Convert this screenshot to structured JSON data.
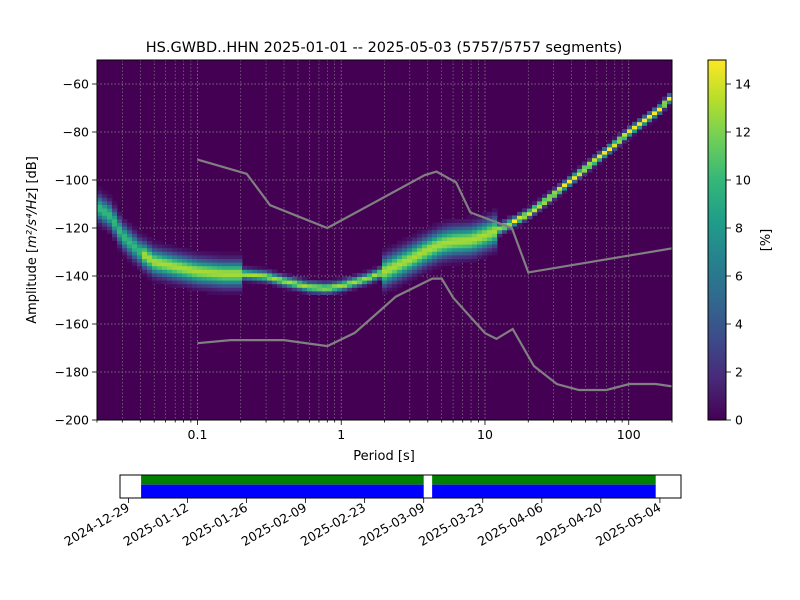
{
  "chart_data": [
    {
      "type": "heatmap",
      "title": "HS.GWBD..HHN   2025-01-01 -- 2025-05-03  (5757/5757 segments)",
      "xlabel": "Period [s]",
      "ylabel_prefix": "Amplitude [",
      "ylabel_unit_html": "m²/s⁴/Hz",
      "ylabel_suffix": "] [dB]",
      "xscale": "log",
      "xlim": [
        0.02,
        200
      ],
      "ylim": [
        -200,
        -50
      ],
      "grid": true,
      "x_ticks": [
        {
          "value": 0.1,
          "label": "0.1"
        },
        {
          "value": 1,
          "label": "1"
        },
        {
          "value": 10,
          "label": "10"
        },
        {
          "value": 100,
          "label": "100"
        }
      ],
      "y_ticks": [
        {
          "value": -60,
          "label": "−60"
        },
        {
          "value": -80,
          "label": "−80"
        },
        {
          "value": -100,
          "label": "−100"
        },
        {
          "value": -120,
          "label": "−120"
        },
        {
          "value": -140,
          "label": "−140"
        },
        {
          "value": -160,
          "label": "−160"
        },
        {
          "value": -180,
          "label": "−180"
        },
        {
          "value": -200,
          "label": "−200"
        }
      ],
      "psd_mode": [
        [
          0.02,
          -111
        ],
        [
          0.025,
          -115
        ],
        [
          0.03,
          -123
        ],
        [
          0.04,
          -130
        ],
        [
          0.05,
          -134
        ],
        [
          0.07,
          -136
        ],
        [
          0.1,
          -138
        ],
        [
          0.15,
          -139
        ],
        [
          0.2,
          -139
        ],
        [
          0.3,
          -140
        ],
        [
          0.4,
          -142
        ],
        [
          0.6,
          -144.5
        ],
        [
          0.8,
          -145
        ],
        [
          1.0,
          -144
        ],
        [
          1.5,
          -141
        ],
        [
          2,
          -138
        ],
        [
          3,
          -133
        ],
        [
          4,
          -129
        ],
        [
          5,
          -126.5
        ],
        [
          6,
          -125.5
        ],
        [
          8,
          -125
        ],
        [
          10,
          -123
        ],
        [
          12,
          -121
        ],
        [
          15,
          -118
        ],
        [
          20,
          -114
        ],
        [
          30,
          -106
        ],
        [
          50,
          -95
        ],
        [
          70,
          -88
        ],
        [
          100,
          -80
        ],
        [
          130,
          -75
        ],
        [
          160,
          -71
        ],
        [
          200,
          -65
        ]
      ],
      "nhnm": [
        [
          0.1,
          -91.5
        ],
        [
          0.22,
          -97.4
        ],
        [
          0.32,
          -110.5
        ],
        [
          0.8,
          -120
        ],
        [
          3.8,
          -98
        ],
        [
          4.6,
          -96.5
        ],
        [
          6.3,
          -101
        ],
        [
          7.9,
          -113.5
        ],
        [
          15.4,
          -120
        ],
        [
          20,
          -138.5
        ],
        [
          354.8,
          -126
        ]
      ],
      "nlnm": [
        [
          0.1,
          -168
        ],
        [
          0.17,
          -166.7
        ],
        [
          0.4,
          -166.7
        ],
        [
          0.8,
          -169.2
        ],
        [
          1.24,
          -163.7
        ],
        [
          2.4,
          -148.6
        ],
        [
          4.3,
          -141.1
        ],
        [
          5,
          -141.1
        ],
        [
          6,
          -149
        ],
        [
          10,
          -163.8
        ],
        [
          12,
          -166.2
        ],
        [
          15.6,
          -162.1
        ],
        [
          21.9,
          -177.5
        ],
        [
          31.6,
          -185
        ],
        [
          45,
          -187.5
        ],
        [
          70,
          -187.5
        ],
        [
          101,
          -185
        ],
        [
          154,
          -185
        ],
        [
          200,
          -186
        ]
      ]
    },
    {
      "type": "colorbar",
      "label": "[%]",
      "range": [
        0,
        15
      ],
      "ticks": [
        {
          "value": 0,
          "label": "0"
        },
        {
          "value": 2,
          "label": "2"
        },
        {
          "value": 4,
          "label": "4"
        },
        {
          "value": 6,
          "label": "6"
        },
        {
          "value": 8,
          "label": "8"
        },
        {
          "value": 10,
          "label": "10"
        },
        {
          "value": 12,
          "label": "12"
        },
        {
          "value": 14,
          "label": "14"
        }
      ],
      "colormap": [
        "#440154",
        "#482878",
        "#3e4a89",
        "#31688e",
        "#26828e",
        "#1f9e89",
        "#35b779",
        "#6ece58",
        "#b5de2b",
        "#fde725"
      ]
    },
    {
      "type": "timeline",
      "range": [
        "2024-12-27",
        "2025-05-09"
      ],
      "coverage": [
        {
          "start": "2025-01-01",
          "end": "2025-03-09"
        },
        {
          "start": "2025-03-11",
          "end": "2025-05-03"
        }
      ],
      "date_ticks": [
        {
          "value": "2024-12-29",
          "label": "2024-12-29"
        },
        {
          "value": "2025-01-12",
          "label": "2025-01-12"
        },
        {
          "value": "2025-01-26",
          "label": "2025-01-26"
        },
        {
          "value": "2025-02-09",
          "label": "2025-02-09"
        },
        {
          "value": "2025-02-23",
          "label": "2025-02-23"
        },
        {
          "value": "2025-03-09",
          "label": "2025-03-09"
        },
        {
          "value": "2025-03-23",
          "label": "2025-03-23"
        },
        {
          "value": "2025-04-06",
          "label": "2025-04-06"
        },
        {
          "value": "2025-04-20",
          "label": "2025-04-20"
        },
        {
          "value": "2025-05-04",
          "label": "2025-05-04"
        }
      ],
      "colors": {
        "top": "#008000",
        "bottom": "#0000ff"
      }
    }
  ],
  "colors": {
    "background": "#440154",
    "model_line": "#808080",
    "grid": "#8a8a8a"
  }
}
